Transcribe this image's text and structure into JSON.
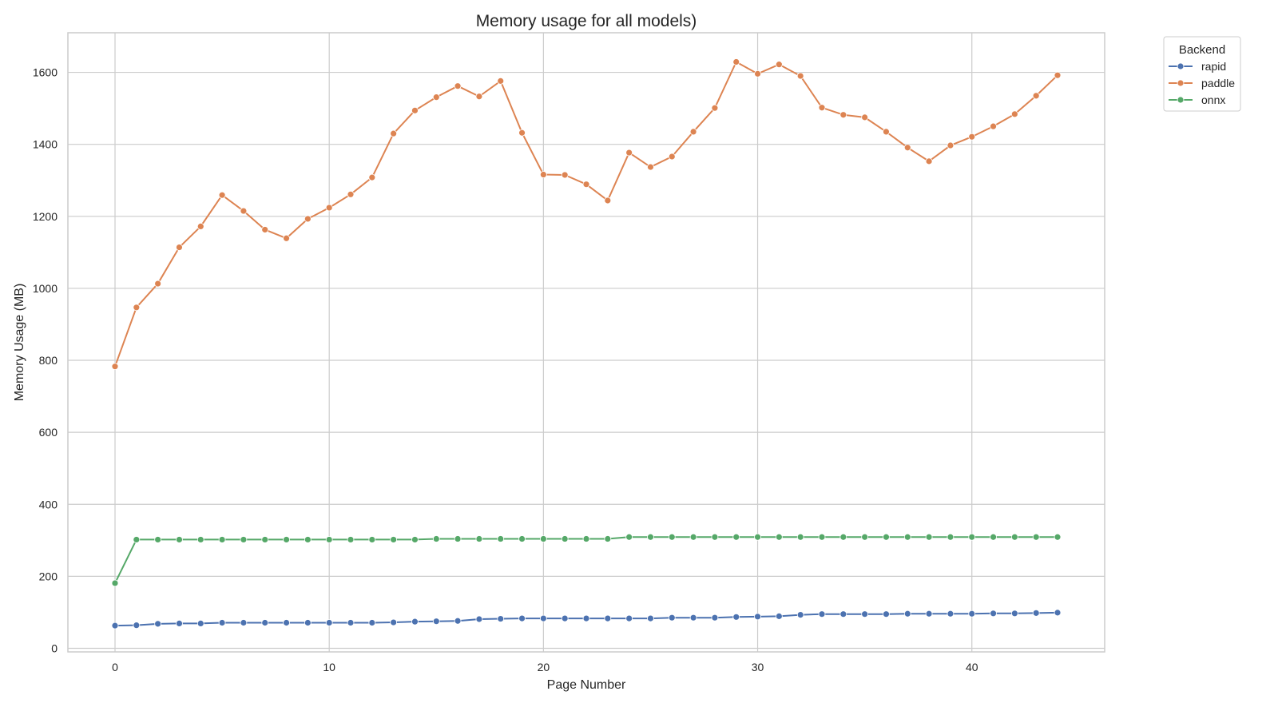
{
  "chart_data": {
    "type": "line",
    "title": "Memory usage for all models)",
    "xlabel": "Page Number",
    "ylabel": "Memory Usage (MB)",
    "xlim": [
      -2.2,
      46.2
    ],
    "ylim": [
      -10,
      1710
    ],
    "xticks": [
      0,
      10,
      20,
      30,
      40
    ],
    "yticks": [
      0,
      200,
      400,
      600,
      800,
      1000,
      1200,
      1400,
      1600
    ],
    "grid": true,
    "legend": {
      "title": "Backend",
      "placement": "outside top-right"
    },
    "x": [
      0,
      1,
      2,
      3,
      4,
      5,
      6,
      7,
      8,
      9,
      10,
      11,
      12,
      13,
      14,
      15,
      16,
      17,
      18,
      19,
      20,
      21,
      22,
      23,
      24,
      25,
      26,
      27,
      28,
      29,
      30,
      31,
      32,
      33,
      34,
      35,
      36,
      37,
      38,
      39,
      40,
      41,
      42,
      43,
      44
    ],
    "series": [
      {
        "name": "rapid",
        "color": "#4c72b0",
        "values": [
          63,
          64,
          68,
          69,
          69,
          71,
          71,
          71,
          71,
          71,
          71,
          71,
          71,
          72,
          74,
          75,
          76,
          81,
          82,
          83,
          83,
          83,
          83,
          83,
          83,
          83,
          85,
          85,
          85,
          87,
          88,
          89,
          93,
          95,
          95,
          95,
          95,
          96,
          96,
          96,
          96,
          97,
          97,
          98,
          99
        ]
      },
      {
        "name": "paddle",
        "color": "#dd8452",
        "values": [
          783,
          947,
          1013,
          1114,
          1172,
          1259,
          1215,
          1163,
          1139,
          1193,
          1224,
          1261,
          1308,
          1430,
          1494,
          1531,
          1562,
          1533,
          1576,
          1432,
          1316,
          1315,
          1289,
          1244,
          1377,
          1337,
          1366,
          1435,
          1501,
          1629,
          1596,
          1622,
          1590,
          1502,
          1482,
          1475,
          1435,
          1391,
          1353,
          1397,
          1421,
          1450,
          1484,
          1535,
          1592
        ]
      },
      {
        "name": "onnx",
        "color": "#55a868",
        "values": [
          181,
          302,
          302,
          302,
          302,
          302,
          302,
          302,
          302,
          302,
          302,
          302,
          302,
          302,
          302,
          304,
          304,
          304,
          304,
          304,
          304,
          304,
          304,
          304,
          309,
          309,
          309,
          309,
          309,
          309,
          309,
          309,
          309,
          309,
          309,
          309,
          309,
          309,
          309,
          309,
          309,
          309,
          309,
          309,
          309
        ]
      }
    ]
  }
}
